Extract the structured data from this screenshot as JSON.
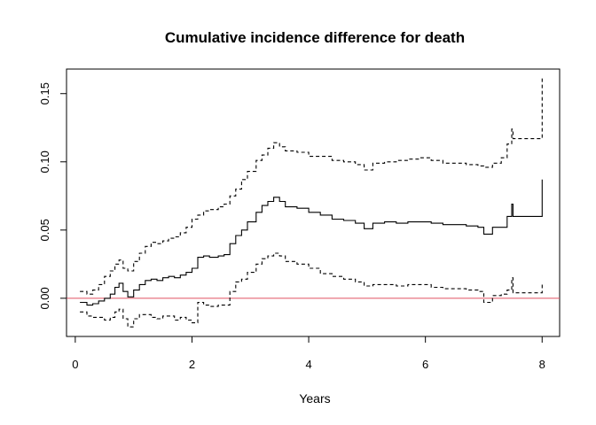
{
  "chart_data": {
    "type": "line",
    "title": "Cumulative incidence difference for death",
    "xlabel": "Years",
    "ylabel": "",
    "xlim": [
      -0.15,
      8.3
    ],
    "ylim": [
      -0.028,
      0.168
    ],
    "x_ticks": [
      0,
      2,
      4,
      6,
      8
    ],
    "x_tick_labels": [
      "0",
      "2",
      "4",
      "6",
      "8"
    ],
    "y_ticks": [
      0.0,
      0.05,
      0.1,
      0.15
    ],
    "y_tick_labels": [
      "0.00",
      "0.05",
      "0.10",
      "0.15"
    ],
    "grid": false,
    "legend": "none",
    "reference_line": {
      "y": 0,
      "color": "#e05060"
    },
    "series": [
      {
        "style": "solid",
        "color": "#000000",
        "points": [
          [
            0.08,
            -0.003
          ],
          [
            0.2,
            -0.005
          ],
          [
            0.3,
            -0.004
          ],
          [
            0.4,
            -0.002
          ],
          [
            0.5,
            0.0
          ],
          [
            0.6,
            0.003
          ],
          [
            0.68,
            0.008
          ],
          [
            0.75,
            0.011
          ],
          [
            0.82,
            0.005
          ],
          [
            0.9,
            0.001
          ],
          [
            1.0,
            0.006
          ],
          [
            1.1,
            0.01
          ],
          [
            1.2,
            0.013
          ],
          [
            1.3,
            0.014
          ],
          [
            1.4,
            0.013
          ],
          [
            1.5,
            0.015
          ],
          [
            1.6,
            0.016
          ],
          [
            1.7,
            0.015
          ],
          [
            1.8,
            0.017
          ],
          [
            1.9,
            0.019
          ],
          [
            2.0,
            0.022
          ],
          [
            2.1,
            0.03
          ],
          [
            2.2,
            0.031
          ],
          [
            2.3,
            0.03
          ],
          [
            2.45,
            0.031
          ],
          [
            2.55,
            0.032
          ],
          [
            2.65,
            0.04
          ],
          [
            2.75,
            0.046
          ],
          [
            2.85,
            0.05
          ],
          [
            2.95,
            0.056
          ],
          [
            3.1,
            0.063
          ],
          [
            3.2,
            0.068
          ],
          [
            3.3,
            0.071
          ],
          [
            3.4,
            0.074
          ],
          [
            3.5,
            0.071
          ],
          [
            3.6,
            0.067
          ],
          [
            3.8,
            0.066
          ],
          [
            4.0,
            0.063
          ],
          [
            4.2,
            0.061
          ],
          [
            4.4,
            0.058
          ],
          [
            4.6,
            0.057
          ],
          [
            4.8,
            0.055
          ],
          [
            4.95,
            0.051
          ],
          [
            5.1,
            0.055
          ],
          [
            5.3,
            0.056
          ],
          [
            5.5,
            0.055
          ],
          [
            5.7,
            0.056
          ],
          [
            5.9,
            0.056
          ],
          [
            6.1,
            0.055
          ],
          [
            6.3,
            0.054
          ],
          [
            6.5,
            0.054
          ],
          [
            6.7,
            0.053
          ],
          [
            6.9,
            0.052
          ],
          [
            7.0,
            0.047
          ],
          [
            7.1,
            0.047
          ],
          [
            7.15,
            0.052
          ],
          [
            7.3,
            0.052
          ],
          [
            7.4,
            0.06
          ],
          [
            7.48,
            0.069
          ],
          [
            7.5,
            0.06
          ],
          [
            7.8,
            0.06
          ],
          [
            8.0,
            0.06
          ],
          [
            8.0,
            0.087
          ]
        ]
      },
      {
        "style": "dashed",
        "color": "#000000",
        "points": [
          [
            0.08,
            0.005
          ],
          [
            0.2,
            0.003
          ],
          [
            0.3,
            0.006
          ],
          [
            0.4,
            0.01
          ],
          [
            0.5,
            0.016
          ],
          [
            0.6,
            0.02
          ],
          [
            0.68,
            0.025
          ],
          [
            0.75,
            0.028
          ],
          [
            0.82,
            0.022
          ],
          [
            0.9,
            0.02
          ],
          [
            1.0,
            0.027
          ],
          [
            1.1,
            0.033
          ],
          [
            1.2,
            0.038
          ],
          [
            1.3,
            0.041
          ],
          [
            1.4,
            0.04
          ],
          [
            1.5,
            0.042
          ],
          [
            1.6,
            0.044
          ],
          [
            1.7,
            0.045
          ],
          [
            1.8,
            0.048
          ],
          [
            1.9,
            0.052
          ],
          [
            2.0,
            0.058
          ],
          [
            2.1,
            0.061
          ],
          [
            2.2,
            0.064
          ],
          [
            2.3,
            0.065
          ],
          [
            2.45,
            0.067
          ],
          [
            2.55,
            0.069
          ],
          [
            2.65,
            0.075
          ],
          [
            2.75,
            0.08
          ],
          [
            2.85,
            0.087
          ],
          [
            2.95,
            0.093
          ],
          [
            3.1,
            0.101
          ],
          [
            3.2,
            0.105
          ],
          [
            3.3,
            0.11
          ],
          [
            3.4,
            0.114
          ],
          [
            3.5,
            0.111
          ],
          [
            3.6,
            0.108
          ],
          [
            3.8,
            0.107
          ],
          [
            4.0,
            0.104
          ],
          [
            4.2,
            0.104
          ],
          [
            4.4,
            0.101
          ],
          [
            4.6,
            0.1
          ],
          [
            4.8,
            0.098
          ],
          [
            4.95,
            0.094
          ],
          [
            5.1,
            0.099
          ],
          [
            5.3,
            0.1
          ],
          [
            5.5,
            0.101
          ],
          [
            5.7,
            0.102
          ],
          [
            5.9,
            0.103
          ],
          [
            6.1,
            0.101
          ],
          [
            6.3,
            0.099
          ],
          [
            6.5,
            0.099
          ],
          [
            6.7,
            0.098
          ],
          [
            6.9,
            0.097
          ],
          [
            7.0,
            0.096
          ],
          [
            7.1,
            0.096
          ],
          [
            7.15,
            0.099
          ],
          [
            7.3,
            0.103
          ],
          [
            7.4,
            0.113
          ],
          [
            7.48,
            0.124
          ],
          [
            7.5,
            0.117
          ],
          [
            7.8,
            0.117
          ],
          [
            8.0,
            0.117
          ],
          [
            8.0,
            0.163
          ]
        ]
      },
      {
        "style": "dashed",
        "color": "#000000",
        "points": [
          [
            0.08,
            -0.01
          ],
          [
            0.2,
            -0.013
          ],
          [
            0.3,
            -0.014
          ],
          [
            0.4,
            -0.014
          ],
          [
            0.5,
            -0.016
          ],
          [
            0.6,
            -0.014
          ],
          [
            0.68,
            -0.01
          ],
          [
            0.75,
            -0.008
          ],
          [
            0.82,
            -0.015
          ],
          [
            0.9,
            -0.021
          ],
          [
            1.0,
            -0.015
          ],
          [
            1.1,
            -0.012
          ],
          [
            1.2,
            -0.012
          ],
          [
            1.3,
            -0.014
          ],
          [
            1.4,
            -0.015
          ],
          [
            1.5,
            -0.013
          ],
          [
            1.6,
            -0.013
          ],
          [
            1.7,
            -0.016
          ],
          [
            1.8,
            -0.014
          ],
          [
            1.9,
            -0.016
          ],
          [
            2.0,
            -0.018
          ],
          [
            2.1,
            -0.003
          ],
          [
            2.2,
            -0.005
          ],
          [
            2.3,
            -0.006
          ],
          [
            2.45,
            -0.005
          ],
          [
            2.55,
            -0.005
          ],
          [
            2.65,
            0.005
          ],
          [
            2.75,
            0.012
          ],
          [
            2.85,
            0.014
          ],
          [
            2.95,
            0.019
          ],
          [
            3.1,
            0.025
          ],
          [
            3.2,
            0.029
          ],
          [
            3.3,
            0.031
          ],
          [
            3.4,
            0.033
          ],
          [
            3.5,
            0.031
          ],
          [
            3.6,
            0.027
          ],
          [
            3.8,
            0.025
          ],
          [
            4.0,
            0.022
          ],
          [
            4.2,
            0.018
          ],
          [
            4.4,
            0.016
          ],
          [
            4.6,
            0.014
          ],
          [
            4.8,
            0.012
          ],
          [
            4.95,
            0.009
          ],
          [
            5.1,
            0.01
          ],
          [
            5.3,
            0.01
          ],
          [
            5.5,
            0.009
          ],
          [
            5.7,
            0.01
          ],
          [
            5.9,
            0.01
          ],
          [
            6.1,
            0.008
          ],
          [
            6.3,
            0.007
          ],
          [
            6.5,
            0.007
          ],
          [
            6.7,
            0.006
          ],
          [
            6.9,
            0.005
          ],
          [
            7.0,
            -0.003
          ],
          [
            7.1,
            -0.003
          ],
          [
            7.15,
            0.002
          ],
          [
            7.3,
            0.003
          ],
          [
            7.4,
            0.006
          ],
          [
            7.48,
            0.015
          ],
          [
            7.5,
            0.004
          ],
          [
            7.8,
            0.004
          ],
          [
            8.0,
            0.004
          ],
          [
            8.0,
            0.01
          ]
        ]
      }
    ]
  }
}
